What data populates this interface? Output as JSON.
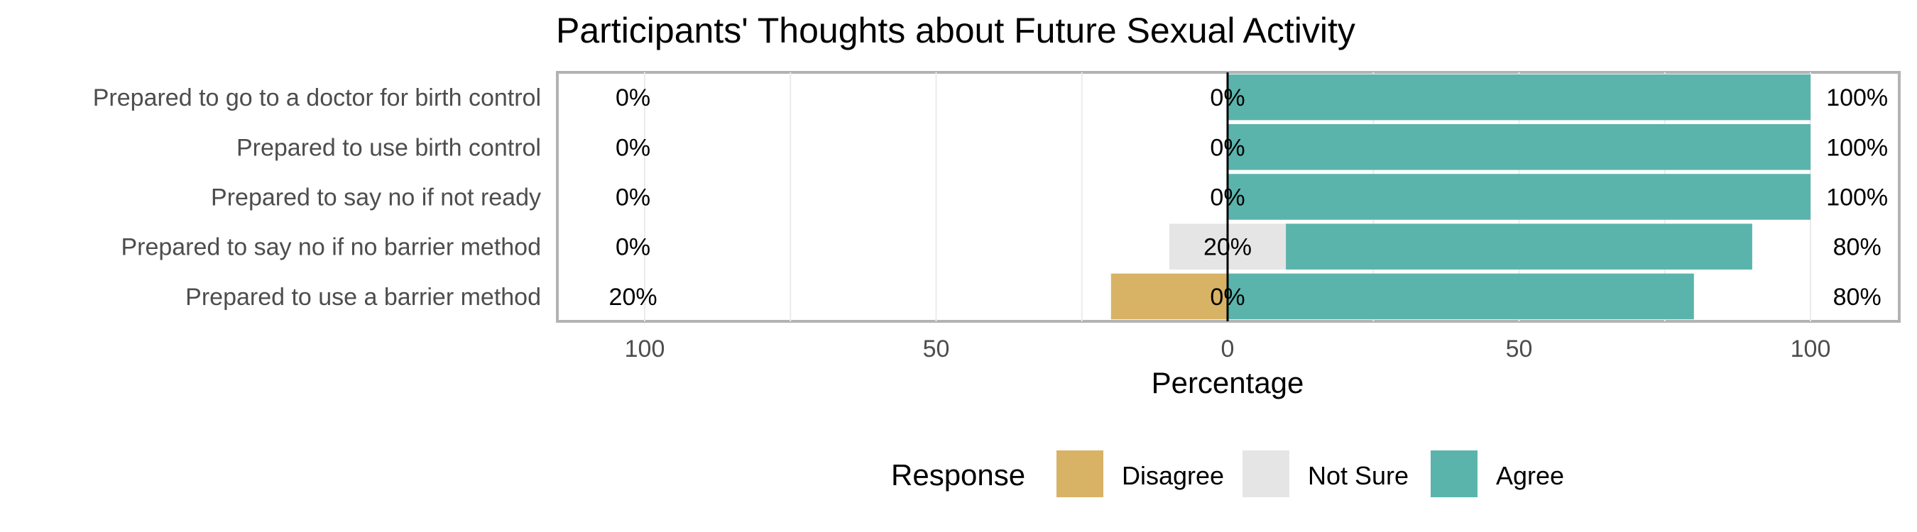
{
  "chart_data": {
    "type": "bar",
    "subtype": "diverging-stacked-horizontal",
    "title": "Participants' Thoughts about Future Sexual Activity",
    "xlabel": "Percentage",
    "ylabel": "",
    "xlim": [
      -115,
      115
    ],
    "x_ticks": [
      {
        "value": -100,
        "label": "100"
      },
      {
        "value": -50,
        "label": "50"
      },
      {
        "value": 0,
        "label": "0"
      },
      {
        "value": 50,
        "label": "50"
      },
      {
        "value": 100,
        "label": "100"
      }
    ],
    "categories": [
      "Prepared to go to a doctor for birth control",
      "Prepared to use birth control",
      "Prepared to say no if not ready",
      "Prepared to say no if no barrier method",
      "Prepared to use a barrier method"
    ],
    "series": [
      {
        "name": "Disagree",
        "color": "#D8B365",
        "values": [
          0,
          0,
          0,
          0,
          20
        ]
      },
      {
        "name": "Not Sure",
        "color": "#E5E5E5",
        "values": [
          0,
          0,
          0,
          20,
          0
        ]
      },
      {
        "name": "Agree",
        "color": "#5AB4AC",
        "values": [
          100,
          100,
          100,
          80,
          80
        ]
      }
    ],
    "labels": {
      "left": [
        "0%",
        "0%",
        "0%",
        "0%",
        "20%"
      ],
      "center": [
        "0%",
        "0%",
        "0%",
        "20%",
        "0%"
      ],
      "right": [
        "100%",
        "100%",
        "100%",
        "80%",
        "80%"
      ]
    },
    "grid": true,
    "legend": {
      "title": "Response",
      "position": "bottom",
      "items": [
        {
          "label": "Disagree",
          "color": "#D8B365"
        },
        {
          "label": "Not Sure",
          "color": "#E5E5E5"
        },
        {
          "label": "Agree",
          "color": "#5AB4AC"
        }
      ]
    }
  }
}
